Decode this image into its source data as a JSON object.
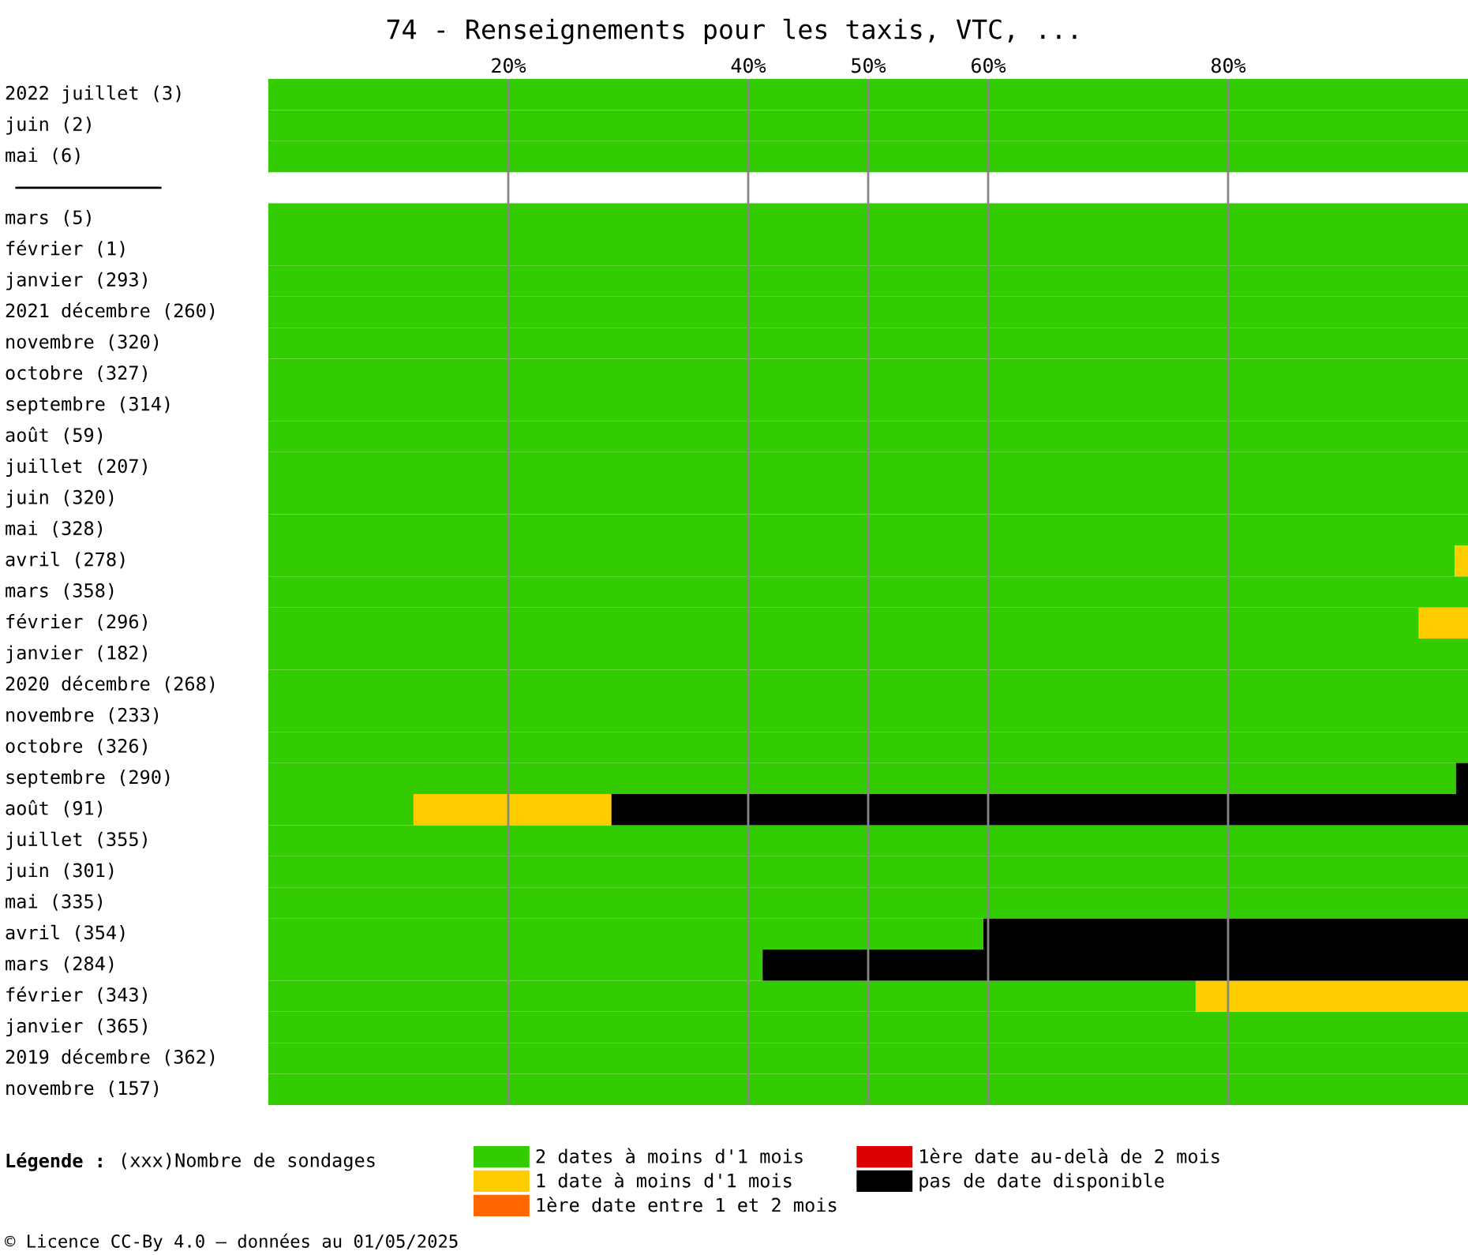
{
  "chart_data": {
    "type": "bar",
    "orientation": "horizontal",
    "stacked": true,
    "title": "74 - Renseignements pour les taxis, VTC, ...",
    "categories": [
      "2022 juillet (3)",
      "juin (2)",
      "mai (6)",
      null,
      "mars (5)",
      "février (1)",
      "janvier (293)",
      "2021 décembre (260)",
      "novembre (320)",
      "octobre (327)",
      "septembre (314)",
      "août (59)",
      "juillet (207)",
      "juin (320)",
      "mai (328)",
      "avril (278)",
      "mars (358)",
      "février (296)",
      "janvier (182)",
      "2020 décembre (268)",
      "novembre (233)",
      "octobre (326)",
      "septembre (290)",
      "août (91)",
      "juillet (355)",
      "juin (301)",
      "mai (335)",
      "avril (354)",
      "mars (284)",
      "février (343)",
      "janvier (365)",
      "2019 décembre (362)",
      "novembre (157)"
    ],
    "series": [
      {
        "name": "2 dates à moins d'1 mois",
        "color": "#33cc00",
        "values": [
          100,
          100,
          100,
          null,
          100,
          100,
          100,
          100,
          100,
          100,
          100,
          100,
          100,
          100,
          100,
          98.9,
          100,
          95.9,
          100,
          100,
          100,
          100,
          99.0,
          12.1,
          100,
          100,
          100,
          59.6,
          41.2,
          77.3,
          100,
          100,
          100
        ]
      },
      {
        "name": "1 date à moins d'1 mois",
        "color": "#ffcc00",
        "values": [
          0,
          0,
          0,
          null,
          0,
          0,
          0,
          0,
          0,
          0,
          0,
          0,
          0,
          0,
          0,
          1.1,
          0,
          4.1,
          0,
          0,
          0,
          0,
          0,
          16.5,
          0,
          0,
          0,
          0,
          0,
          22.7,
          0,
          0,
          0
        ]
      },
      {
        "name": "1ère date entre 1 et 2 mois",
        "color": "#ff6600",
        "values": [
          0,
          0,
          0,
          null,
          0,
          0,
          0,
          0,
          0,
          0,
          0,
          0,
          0,
          0,
          0,
          0,
          0,
          0,
          0,
          0,
          0,
          0,
          0,
          0,
          0,
          0,
          0,
          0,
          0,
          0,
          0,
          0,
          0
        ]
      },
      {
        "name": "1ère date au-delà de 2 mois",
        "color": "#dd0000",
        "values": [
          0,
          0,
          0,
          null,
          0,
          0,
          0,
          0,
          0,
          0,
          0,
          0,
          0,
          0,
          0,
          0,
          0,
          0,
          0,
          0,
          0,
          0,
          0,
          0,
          0,
          0,
          0,
          0,
          0,
          0,
          0,
          0,
          0
        ]
      },
      {
        "name": "pas de date disponible",
        "color": "#000000",
        "values": [
          0,
          0,
          0,
          null,
          0,
          0,
          0,
          0,
          0,
          0,
          0,
          0,
          0,
          0,
          0,
          0,
          0,
          0,
          0,
          0,
          0,
          0,
          1.0,
          71.4,
          0,
          0,
          0,
          40.4,
          58.8,
          0,
          0,
          0,
          0
        ]
      }
    ],
    "xlim": [
      0,
      100
    ],
    "xticks": [
      {
        "value": 20,
        "label": "20%"
      },
      {
        "value": 40,
        "label": "40%"
      },
      {
        "value": 50,
        "label": "50%"
      },
      {
        "value": 60,
        "label": "60%"
      },
      {
        "value": 80,
        "label": "80%"
      }
    ],
    "grid": "x",
    "legend": "bottom",
    "legend_title": "Légende :",
    "annotations": [
      "(xxx)Nombre de sondages",
      "© Licence CC-By 4.0 — données au 01/05/2025"
    ]
  }
}
